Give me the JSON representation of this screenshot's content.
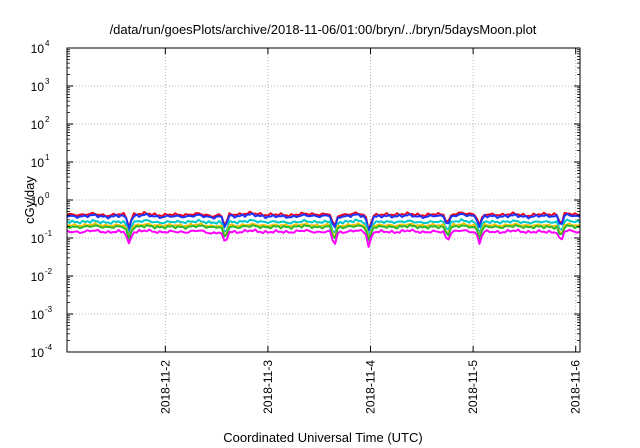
{
  "chart_data": {
    "type": "line",
    "title": "/data/run/goesPlots/archive/2018-11-06/01:00/bryn/../bryn/5daysMoon.plot",
    "xlabel": "Coordinated Universal Time (UTC)",
    "ylabel": "cGy/day",
    "yscale": "log",
    "ylim": [
      0.0001,
      10000
    ],
    "xlim": [
      "2018-11-01T01:00",
      "2018-11-06T01:00"
    ],
    "grid": true,
    "y_ticks": [
      {
        "base": "10",
        "exp": "-4",
        "value": 0.0001
      },
      {
        "base": "10",
        "exp": "-3",
        "value": 0.001
      },
      {
        "base": "10",
        "exp": "-2",
        "value": 0.01
      },
      {
        "base": "10",
        "exp": "-1",
        "value": 0.1
      },
      {
        "base": "10",
        "exp": "0",
        "value": 1
      },
      {
        "base": "10",
        "exp": "1",
        "value": 10
      },
      {
        "base": "10",
        "exp": "2",
        "value": 100
      },
      {
        "base": "10",
        "exp": "3",
        "value": 1000
      },
      {
        "base": "10",
        "exp": "4",
        "value": 10000
      }
    ],
    "x_ticks": [
      {
        "label": "2018-11-2",
        "value": "2018-11-02T00:00"
      },
      {
        "label": "2018-11-3",
        "value": "2018-11-03T00:00"
      },
      {
        "label": "2018-11-4",
        "value": "2018-11-04T00:00"
      },
      {
        "label": "2018-11-5",
        "value": "2018-11-05T00:00"
      },
      {
        "label": "2018-11-6",
        "value": "2018-11-06T00:00"
      }
    ],
    "dips": [
      {
        "time": "2018-11-01T15:30",
        "depth": 0.55
      },
      {
        "time": "2018-11-02T14:00",
        "depth": 0.6
      },
      {
        "time": "2018-11-03T15:30",
        "depth": 0.65
      },
      {
        "time": "2018-11-03T23:40",
        "depth": 0.65
      },
      {
        "time": "2018-11-04T18:00",
        "depth": 0.45
      },
      {
        "time": "2018-11-05T01:30",
        "depth": 0.5
      },
      {
        "time": "2018-11-05T20:30",
        "depth": 0.55
      }
    ],
    "series": [
      {
        "color": "#e8001c",
        "values": [
          0.42,
          0.4,
          0.44,
          0.38,
          0.43,
          0.41,
          0.45,
          0.39,
          0.42,
          0.4,
          0.44,
          0.37,
          0.43,
          0.41,
          0.46,
          0.4,
          0.42,
          0.39,
          0.44,
          0.41,
          0.43,
          0.4,
          0.45,
          0.38,
          0.42,
          0.41,
          0.44,
          0.39,
          0.43,
          0.4,
          0.46,
          0.41,
          0.42,
          0.4,
          0.44,
          0.38,
          0.43,
          0.41,
          0.45,
          0.4
        ]
      },
      {
        "color": "#1a34ff",
        "values": [
          0.38,
          0.36,
          0.4,
          0.35,
          0.39,
          0.37,
          0.41,
          0.35,
          0.38,
          0.36,
          0.4,
          0.34,
          0.39,
          0.37,
          0.42,
          0.36,
          0.38,
          0.35,
          0.4,
          0.37,
          0.39,
          0.36,
          0.41,
          0.35,
          0.38,
          0.37,
          0.4,
          0.35,
          0.39,
          0.36,
          0.42,
          0.37,
          0.38,
          0.36,
          0.4,
          0.35,
          0.39,
          0.37,
          0.41,
          0.36
        ]
      },
      {
        "color": "#00c8c8",
        "values": [
          0.27,
          0.26,
          0.28,
          0.25,
          0.27,
          0.26,
          0.29,
          0.25,
          0.27,
          0.26,
          0.28,
          0.25,
          0.27,
          0.26,
          0.29,
          0.26,
          0.27,
          0.25,
          0.28,
          0.26,
          0.27,
          0.26,
          0.29,
          0.25,
          0.27,
          0.26,
          0.28,
          0.25,
          0.27,
          0.26,
          0.29,
          0.26,
          0.27,
          0.26,
          0.28,
          0.25,
          0.27,
          0.26,
          0.29,
          0.26
        ]
      },
      {
        "color": "#ffc000",
        "values": [
          0.22,
          0.21,
          0.23,
          0.21,
          0.22,
          0.21,
          0.23,
          0.21,
          0.22,
          0.21,
          0.23,
          0.2,
          0.22,
          0.21,
          0.23,
          0.21,
          0.22,
          0.21,
          0.23,
          0.21,
          0.22,
          0.21,
          0.23,
          0.21,
          0.22,
          0.21,
          0.23,
          0.21,
          0.22,
          0.21,
          0.23,
          0.21,
          0.22,
          0.21,
          0.23,
          0.21,
          0.22,
          0.21,
          0.23,
          0.21
        ]
      },
      {
        "color": "#2db82d",
        "values": [
          0.2,
          0.19,
          0.21,
          0.19,
          0.2,
          0.19,
          0.21,
          0.19,
          0.2,
          0.19,
          0.21,
          0.19,
          0.2,
          0.19,
          0.21,
          0.19,
          0.2,
          0.19,
          0.21,
          0.19,
          0.2,
          0.19,
          0.21,
          0.19,
          0.2,
          0.19,
          0.21,
          0.19,
          0.2,
          0.19,
          0.21,
          0.19,
          0.2,
          0.19,
          0.21,
          0.19,
          0.2,
          0.19,
          0.21,
          0.19
        ]
      },
      {
        "color": "#ff00ff",
        "values": [
          0.15,
          0.14,
          0.16,
          0.14,
          0.15,
          0.14,
          0.16,
          0.14,
          0.15,
          0.14,
          0.16,
          0.13,
          0.15,
          0.14,
          0.16,
          0.14,
          0.15,
          0.14,
          0.16,
          0.14,
          0.15,
          0.14,
          0.16,
          0.14,
          0.15,
          0.14,
          0.16,
          0.14,
          0.15,
          0.14,
          0.16,
          0.14,
          0.15,
          0.14,
          0.16,
          0.14,
          0.15,
          0.14,
          0.16,
          0.14
        ]
      }
    ]
  }
}
